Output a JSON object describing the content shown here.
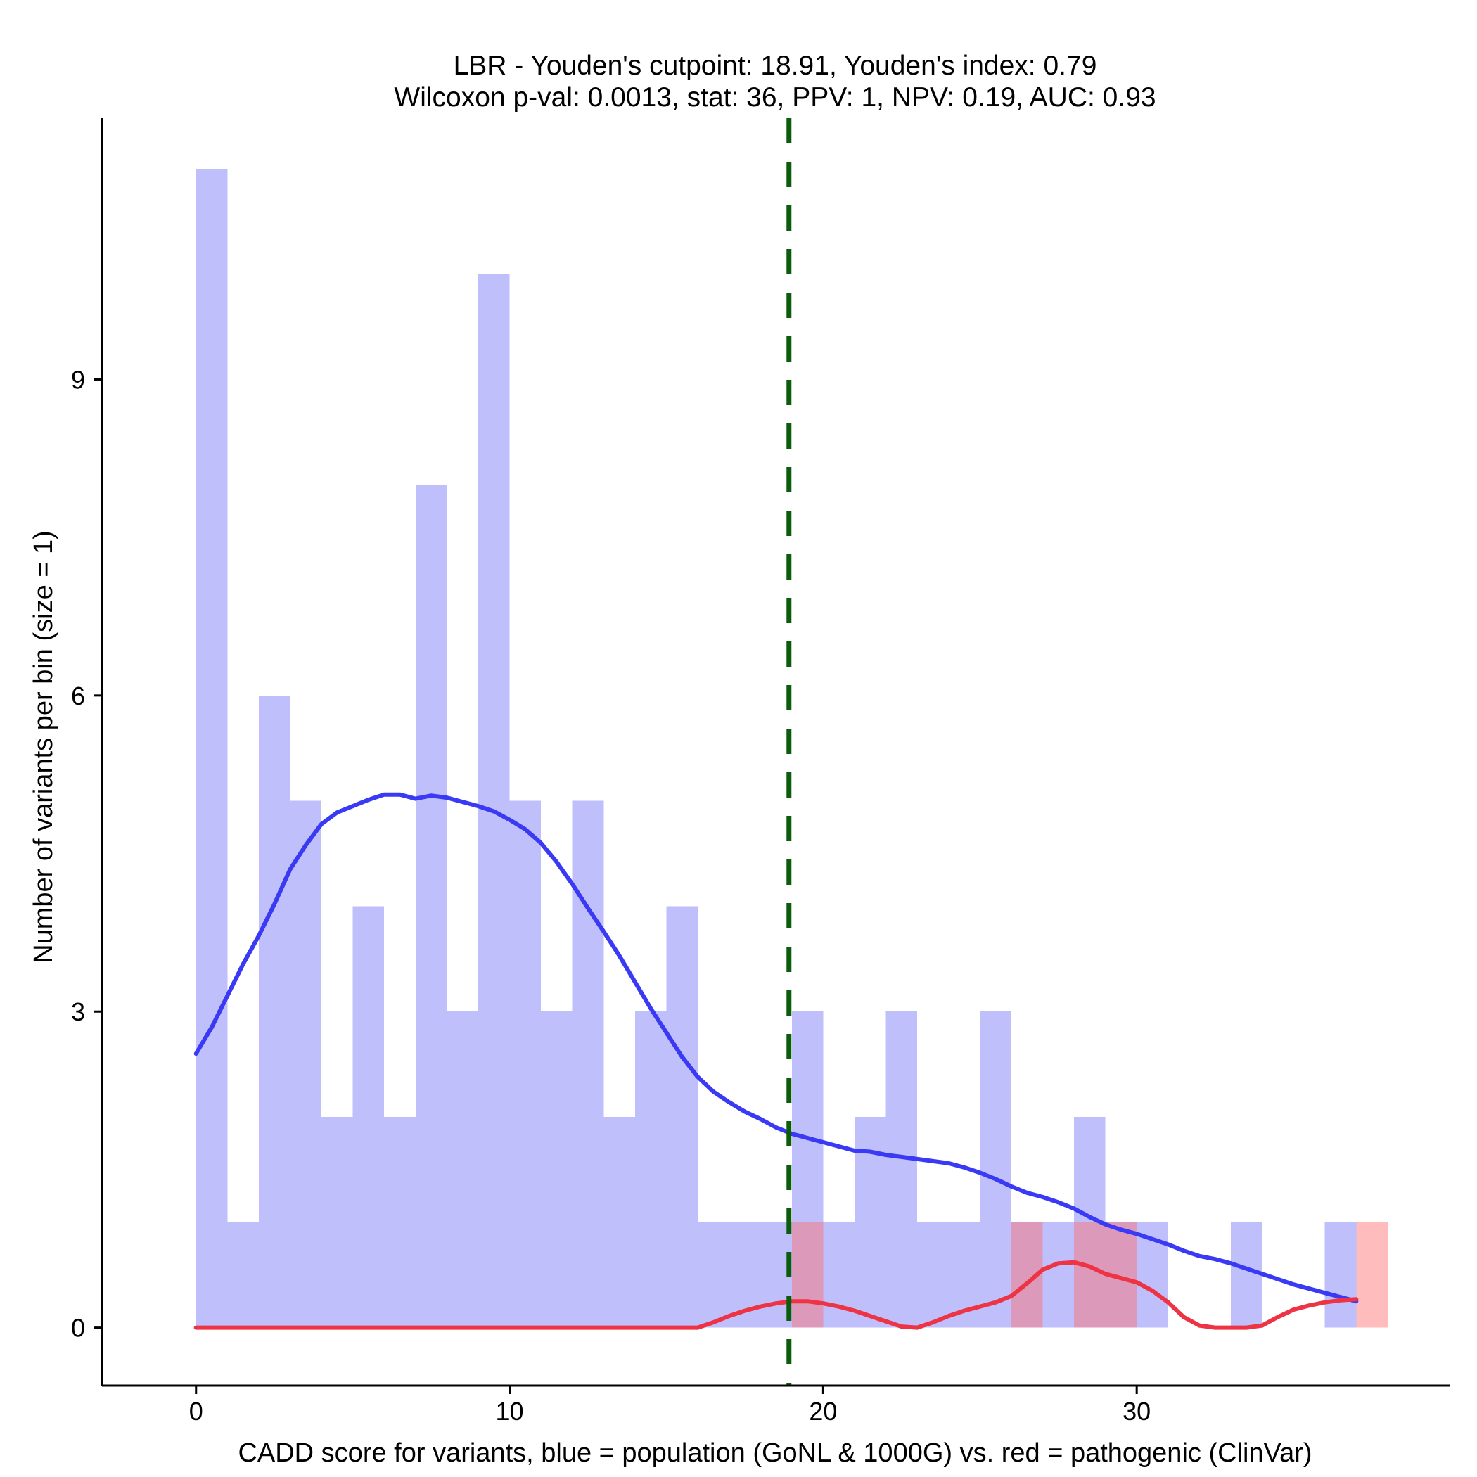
{
  "chart_data": {
    "type": "histogram",
    "title": "LBR - Youden's cutpoint: 18.91, Youden's index: 0.79",
    "subtitle": "Wilcoxon p-val: 0.0013, stat: 36, PPV: 1, NPV: 0.19, AUC: 0.93",
    "xlabel": "CADD score for variants, blue = population (GoNL & 1000G) vs. red = pathogenic (ClinVar)",
    "ylabel": "Number of variants per bin (size = 1)",
    "xlim": [
      -3,
      40
    ],
    "ylim": [
      -0.55,
      11.6
    ],
    "x_ticks": [
      0,
      10,
      20,
      30
    ],
    "y_ticks": [
      0,
      3,
      6,
      9
    ],
    "bin_width": 1,
    "cutpoint": 18.91,
    "series": [
      {
        "name": "population (GoNL & 1000G)",
        "color": "#bfbffb",
        "bin_starts": [
          0,
          1,
          2,
          3,
          4,
          5,
          6,
          7,
          8,
          9,
          10,
          11,
          12,
          13,
          14,
          15,
          16,
          17,
          18,
          19,
          20,
          21,
          22,
          23,
          24,
          25,
          26,
          27,
          28,
          29,
          30,
          31,
          32,
          33,
          34,
          35,
          36,
          37
        ],
        "counts": [
          11,
          1,
          6,
          5,
          2,
          4,
          2,
          8,
          3,
          10,
          5,
          3,
          5,
          2,
          3,
          4,
          1,
          1,
          1,
          3,
          1,
          2,
          3,
          1,
          1,
          3,
          1,
          1,
          2,
          1,
          1,
          0,
          0,
          1,
          0,
          0,
          1,
          0
        ]
      },
      {
        "name": "pathogenic (ClinVar)",
        "color": "#fcbcbc",
        "bin_starts": [
          19,
          26,
          28,
          29,
          37
        ],
        "counts": [
          1,
          1,
          1,
          1,
          1
        ]
      }
    ],
    "density_curves": [
      {
        "name": "population density (scaled)",
        "color": "#3a3af5",
        "x": [
          0,
          0.5,
          1,
          1.5,
          2,
          2.5,
          3,
          3.5,
          4,
          4.5,
          5,
          5.5,
          6,
          6.5,
          7,
          7.5,
          8,
          8.5,
          9,
          9.5,
          10,
          10.5,
          11,
          11.5,
          12,
          12.5,
          13,
          13.5,
          14,
          14.5,
          15,
          15.5,
          16,
          16.5,
          17,
          17.5,
          18,
          18.5,
          19,
          19.5,
          20,
          20.5,
          21,
          21.5,
          22,
          22.5,
          23,
          23.5,
          24,
          24.5,
          25,
          25.5,
          26,
          26.5,
          27,
          27.5,
          28,
          28.5,
          29,
          29.5,
          30,
          30.5,
          31,
          31.5,
          32,
          32.5,
          33,
          33.5,
          34,
          34.5,
          35,
          35.5,
          36,
          36.5,
          37
        ],
        "y": [
          2.6,
          2.85,
          3.15,
          3.45,
          3.72,
          4.02,
          4.35,
          4.58,
          4.78,
          4.89,
          4.95,
          5.01,
          5.06,
          5.06,
          5.02,
          5.05,
          5.03,
          4.99,
          4.95,
          4.9,
          4.82,
          4.73,
          4.6,
          4.42,
          4.21,
          3.98,
          3.76,
          3.53,
          3.28,
          3.03,
          2.8,
          2.57,
          2.38,
          2.24,
          2.14,
          2.05,
          1.98,
          1.9,
          1.84,
          1.8,
          1.76,
          1.72,
          1.68,
          1.67,
          1.64,
          1.62,
          1.6,
          1.58,
          1.56,
          1.52,
          1.47,
          1.41,
          1.34,
          1.28,
          1.24,
          1.19,
          1.13,
          1.05,
          0.98,
          0.93,
          0.89,
          0.84,
          0.79,
          0.73,
          0.68,
          0.65,
          0.61,
          0.56,
          0.51,
          0.46,
          0.41,
          0.37,
          0.33,
          0.29,
          0.25
        ]
      },
      {
        "name": "pathogenic density (scaled)",
        "color": "#ee3344",
        "x": [
          0,
          2,
          4,
          6,
          8,
          10,
          12,
          14,
          15,
          15.5,
          16,
          16.5,
          17,
          17.5,
          18,
          18.5,
          19,
          19.5,
          20,
          20.5,
          21,
          21.5,
          22,
          22.5,
          23,
          23.5,
          24,
          24.5,
          25,
          25.5,
          26,
          26.5,
          27,
          27.5,
          28,
          28.5,
          29,
          29.5,
          30,
          30.5,
          31,
          31.5,
          32,
          32.5,
          33,
          33.5,
          34,
          34.5,
          35,
          35.5,
          36,
          36.5,
          37
        ],
        "y": [
          0,
          0,
          0,
          0,
          0,
          0,
          0,
          0,
          0,
          0,
          0,
          0.05,
          0.11,
          0.16,
          0.2,
          0.23,
          0.25,
          0.25,
          0.23,
          0.2,
          0.16,
          0.11,
          0.06,
          0.01,
          0,
          0.05,
          0.11,
          0.16,
          0.2,
          0.24,
          0.3,
          0.42,
          0.55,
          0.61,
          0.62,
          0.58,
          0.51,
          0.47,
          0.43,
          0.35,
          0.24,
          0.1,
          0.02,
          0,
          0,
          0,
          0.02,
          0.1,
          0.17,
          0.21,
          0.24,
          0.26,
          0.27
        ]
      }
    ],
    "colors": {
      "blue_bars": "#bfbffb",
      "red_bars": "#fcbcbc",
      "overlap_bars": "#cf92c9",
      "blue_line": "#3a3af5",
      "red_line": "#ee3344",
      "cutpoint_line": "#0b5c0b",
      "axis": "#000000"
    }
  }
}
